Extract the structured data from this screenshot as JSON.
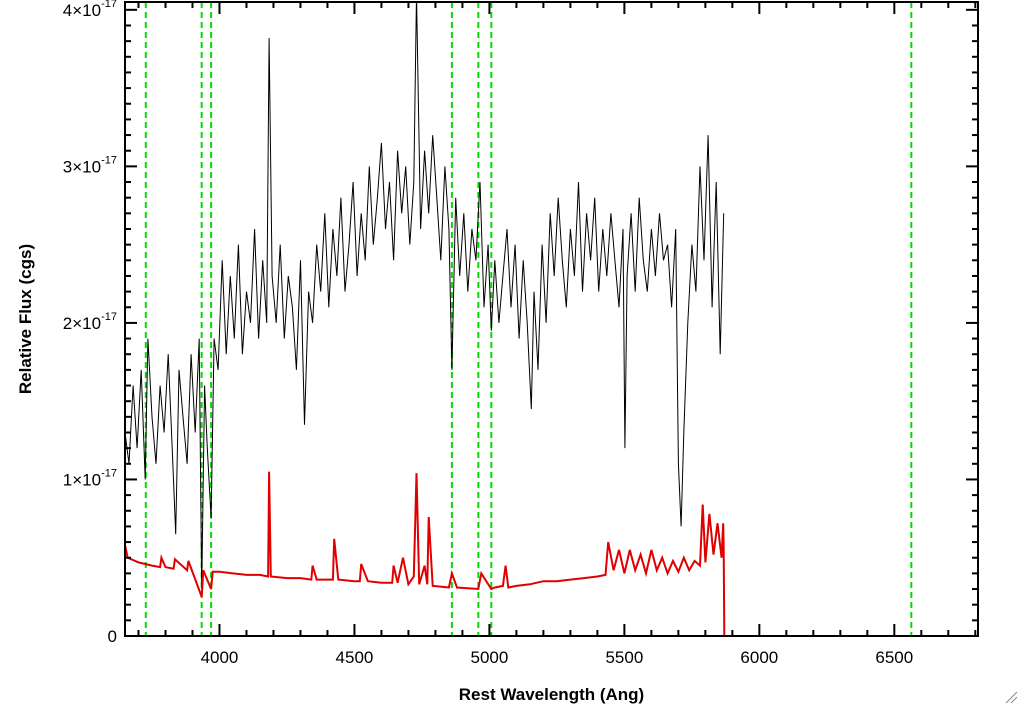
{
  "chart_data": {
    "type": "line",
    "xlabel": "Rest Wavelength (Ang)",
    "ylabel": "Relative Flux (cgs)",
    "xlim": [
      3650,
      6810
    ],
    "ylim": [
      0,
      4.05e-17
    ],
    "x_ticks": [
      {
        "value": 4000,
        "label": "4000"
      },
      {
        "value": 4500,
        "label": "4500"
      },
      {
        "value": 5000,
        "label": "5000"
      },
      {
        "value": 5500,
        "label": "5500"
      },
      {
        "value": 6000,
        "label": "6000"
      },
      {
        "value": 6500,
        "label": "6500"
      }
    ],
    "y_ticks": [
      {
        "value": 0,
        "mantissa": "0",
        "exponent": ""
      },
      {
        "value": 1e-17,
        "mantissa": "1×10",
        "exponent": "-17"
      },
      {
        "value": 2e-17,
        "mantissa": "2×10",
        "exponent": "-17"
      },
      {
        "value": 3e-17,
        "mantissa": "3×10",
        "exponent": "-17"
      },
      {
        "value": 4e-17,
        "mantissa": "4×10",
        "exponent": "-17"
      }
    ],
    "grid": false,
    "reference_lines": [
      3727,
      3934,
      3969,
      4861,
      4959,
      5007,
      6563
    ],
    "series": [
      {
        "color": "#000000",
        "x": [
          3650,
          3665,
          3680,
          3695,
          3710,
          3725,
          3735,
          3750,
          3765,
          3780,
          3795,
          3810,
          3825,
          3838,
          3850,
          3865,
          3880,
          3895,
          3910,
          3925,
          3934,
          3945,
          3955,
          3969,
          3980,
          3995,
          4010,
          4025,
          4040,
          4055,
          4070,
          4085,
          4100,
          4115,
          4130,
          4145,
          4160,
          4175,
          4184,
          4195,
          4210,
          4225,
          4240,
          4255,
          4270,
          4285,
          4300,
          4315,
          4330,
          4345,
          4360,
          4375,
          4390,
          4405,
          4420,
          4435,
          4450,
          4465,
          4480,
          4495,
          4510,
          4525,
          4540,
          4555,
          4570,
          4585,
          4600,
          4615,
          4630,
          4645,
          4660,
          4675,
          4690,
          4705,
          4720,
          4730,
          4745,
          4760,
          4775,
          4790,
          4805,
          4820,
          4835,
          4850,
          4861,
          4875,
          4890,
          4905,
          4920,
          4935,
          4950,
          4965,
          4980,
          4995,
          5007,
          5020,
          5035,
          5050,
          5065,
          5080,
          5095,
          5110,
          5125,
          5140,
          5155,
          5165,
          5180,
          5195,
          5210,
          5225,
          5240,
          5255,
          5270,
          5285,
          5300,
          5315,
          5330,
          5345,
          5360,
          5375,
          5390,
          5405,
          5420,
          5435,
          5450,
          5465,
          5480,
          5495,
          5502,
          5510,
          5525,
          5540,
          5555,
          5570,
          5585,
          5600,
          5615,
          5630,
          5645,
          5660,
          5675,
          5690,
          5700,
          5710,
          5720,
          5735,
          5750,
          5765,
          5780,
          5795,
          5810,
          5825,
          5840,
          5855,
          5868
        ],
        "y": [
          1.3e-17,
          1.1e-17,
          1.6e-17,
          1.2e-17,
          1.7e-17,
          1e-17,
          1.9e-17,
          1.4e-17,
          1.1e-17,
          1.6e-17,
          1.3e-17,
          1.8e-17,
          1.2e-17,
          6.5e-18,
          1.7e-17,
          1.4e-17,
          1.1e-17,
          1.8e-17,
          1.3e-17,
          1.9e-17,
          3e-18,
          1.6e-17,
          1.2e-17,
          7.5e-18,
          1.9e-17,
          1.7e-17,
          2.4e-17,
          1.8e-17,
          2.3e-17,
          1.9e-17,
          2.5e-17,
          1.8e-17,
          2.2e-17,
          2e-17,
          2.6e-17,
          1.9e-17,
          2.4e-17,
          2e-17,
          3.82e-17,
          2.3e-17,
          2e-17,
          2.5e-17,
          1.9e-17,
          2.3e-17,
          2.1e-17,
          1.7e-17,
          2.4e-17,
          1.35e-17,
          2.2e-17,
          2e-17,
          2.5e-17,
          2.2e-17,
          2.7e-17,
          2.1e-17,
          2.6e-17,
          2.3e-17,
          2.8e-17,
          2.2e-17,
          2.5e-17,
          2.9e-17,
          2.3e-17,
          2.7e-17,
          2.4e-17,
          3e-17,
          2.5e-17,
          2.8e-17,
          3.15e-17,
          2.6e-17,
          2.9e-17,
          2.4e-17,
          3.1e-17,
          2.7e-17,
          3e-17,
          2.5e-17,
          2.9e-17,
          4.1e-17,
          2.6e-17,
          3.1e-17,
          2.7e-17,
          3.2e-17,
          2.8e-17,
          2.4e-17,
          3e-17,
          2.6e-17,
          1.7e-17,
          2.8e-17,
          2.3e-17,
          2.7e-17,
          2.2e-17,
          2.6e-17,
          2.4e-17,
          2.9e-17,
          2.1e-17,
          2.5e-17,
          1.95e-17,
          2.4e-17,
          2e-17,
          2.3e-17,
          2.6e-17,
          2.1e-17,
          2.5e-17,
          1.9e-17,
          2.4e-17,
          2e-17,
          1.45e-17,
          2.2e-17,
          1.7e-17,
          2.5e-17,
          2e-17,
          2.7e-17,
          2.3e-17,
          2.8e-17,
          2.4e-17,
          2.1e-17,
          2.6e-17,
          2.3e-17,
          2.9e-17,
          2.2e-17,
          2.7e-17,
          2.4e-17,
          2.8e-17,
          2.2e-17,
          2.6e-17,
          2.3e-17,
          2.7e-17,
          2.4e-17,
          2.1e-17,
          2.6e-17,
          1.2e-17,
          2.3e-17,
          2.7e-17,
          2.2e-17,
          2.8e-17,
          2.4e-17,
          2.2e-17,
          2.6e-17,
          2.3e-17,
          2.7e-17,
          2.4e-17,
          2.5e-17,
          2.1e-17,
          2.6e-17,
          1.1e-17,
          7e-18,
          1.3e-17,
          2e-17,
          2.5e-17,
          2.2e-17,
          3e-17,
          2.4e-17,
          3.2e-17,
          2.1e-17,
          2.9e-17,
          1.8e-17,
          2.7e-17
        ]
      },
      {
        "color": "#e00000",
        "x": [
          3650,
          3660,
          3700,
          3750,
          3780,
          3785,
          3800,
          3830,
          3835,
          3880,
          3885,
          3934,
          3940,
          3969,
          3975,
          4000,
          4050,
          4100,
          4150,
          4180,
          4184,
          4190,
          4250,
          4300,
          4340,
          4345,
          4360,
          4400,
          4420,
          4425,
          4440,
          4500,
          4520,
          4525,
          4550,
          4600,
          4640,
          4645,
          4660,
          4680,
          4700,
          4720,
          4730,
          4740,
          4760,
          4770,
          4775,
          4790,
          4850,
          4861,
          4880,
          4959,
          4970,
          5007,
          5020,
          5050,
          5060,
          5070,
          5100,
          5150,
          5200,
          5250,
          5300,
          5350,
          5400,
          5430,
          5440,
          5460,
          5480,
          5500,
          5520,
          5540,
          5560,
          5580,
          5600,
          5620,
          5640,
          5660,
          5680,
          5700,
          5720,
          5740,
          5760,
          5780,
          5790,
          5800,
          5815,
          5830,
          5845,
          5860,
          5866,
          5868,
          5870,
          5900,
          6000,
          6200,
          6400,
          6600,
          6810
        ],
        "y": [
          5.8e-18,
          5e-18,
          4.7e-18,
          4.5e-18,
          4.4e-18,
          5e-18,
          4.4e-18,
          4.3e-18,
          4.9e-18,
          4.2e-18,
          4.8e-18,
          2.5e-18,
          4.2e-18,
          3e-18,
          4.1e-18,
          4.1e-18,
          4e-18,
          3.9e-18,
          3.9e-18,
          3.8e-18,
          1.05e-17,
          3.8e-18,
          3.7e-18,
          3.7e-18,
          3.6e-18,
          4.5e-18,
          3.6e-18,
          3.6e-18,
          3.6e-18,
          6.2e-18,
          3.6e-18,
          3.5e-18,
          3.5e-18,
          4.6e-18,
          3.5e-18,
          3.4e-18,
          3.4e-18,
          4.5e-18,
          3.4e-18,
          5e-18,
          3.3e-18,
          3.8e-18,
          1.04e-17,
          3.3e-18,
          4.5e-18,
          3.3e-18,
          7.6e-18,
          3.2e-18,
          3.1e-18,
          4e-18,
          3.1e-18,
          3e-18,
          4e-18,
          3e-18,
          3.1e-18,
          3.2e-18,
          4.5e-18,
          3.1e-18,
          3.2e-18,
          3.3e-18,
          3.5e-18,
          3.5e-18,
          3.6e-18,
          3.7e-18,
          3.8e-18,
          3.9e-18,
          6e-18,
          4.2e-18,
          5.5e-18,
          4e-18,
          5.5e-18,
          4.2e-18,
          5.2e-18,
          4e-18,
          5.5e-18,
          4.2e-18,
          5e-18,
          4e-18,
          4.8e-18,
          4.1e-18,
          5e-18,
          4.2e-18,
          4.8e-18,
          4.5e-18,
          8.4e-18,
          4.7e-18,
          7.8e-18,
          5.2e-18,
          7.2e-18,
          5e-18,
          7.2e-18,
          5.5e-18,
          0.0,
          0.0,
          0.0,
          0.0,
          0.0,
          0.0,
          0.0
        ]
      }
    ]
  },
  "legend_colors": {
    "frame": "#000000",
    "reference_line": "#00dd00"
  }
}
